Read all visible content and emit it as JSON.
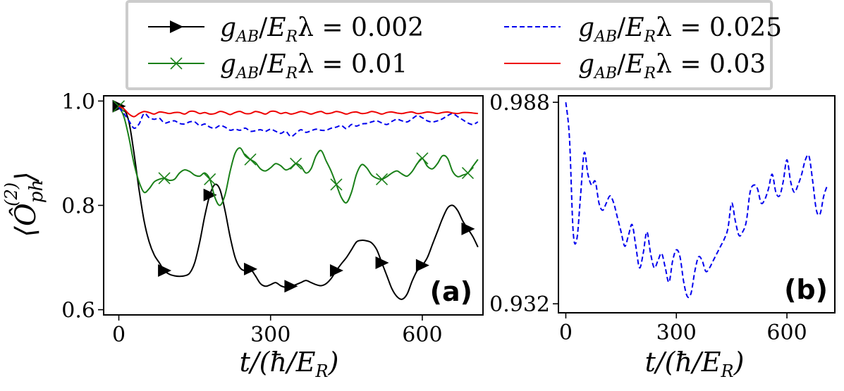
{
  "legend": {
    "placement": "top-center",
    "entries": [
      {
        "label": "g_AB/E_R λ = 0.002",
        "latex_var": "g",
        "sub": "AB",
        "denom": "E",
        "denom_sub": "R",
        "tail": "λ = 0.002",
        "color": "#000000",
        "marker": "triangle-right",
        "dash": "solid"
      },
      {
        "label": "g_AB/E_R λ = 0.01",
        "latex_var": "g",
        "sub": "AB",
        "denom": "E",
        "denom_sub": "R",
        "tail": "λ = 0.01",
        "color": "#1a8019",
        "marker": "x",
        "dash": "solid"
      },
      {
        "label": "g_AB/E_R λ = 0.025",
        "latex_var": "g",
        "sub": "AB",
        "denom": "E",
        "denom_sub": "R",
        "tail": "λ = 0.025",
        "color": "#0000ee",
        "marker": "none",
        "dash": "dashed"
      },
      {
        "label": "g_AB/E_R λ = 0.03",
        "latex_var": "g",
        "sub": "AB",
        "denom": "E",
        "denom_sub": "R",
        "tail": "λ = 0.03",
        "color": "#ee0000",
        "marker": "none",
        "dash": "solid"
      }
    ]
  },
  "chart_data": [
    {
      "panel": "a",
      "panel_label": "(a)",
      "type": "line",
      "xlabel": "t/(ħ/E_R)",
      "xlabel_parts": {
        "t": "t/(ħ/",
        "E": "E",
        "sub": "R",
        "close": ")"
      },
      "ylabel": "⟨Ô_ph^(2)⟩",
      "ylabel_parts": {
        "open": "⟨",
        "O": "Ô",
        "sub": "ph",
        "sup": "(2)",
        "close": "⟩"
      },
      "xlim": [
        -30,
        720
      ],
      "ylim": [
        0.59,
        1.01
      ],
      "xticks": [
        0,
        300,
        600
      ],
      "xtick_labels": [
        "0",
        "300",
        "600"
      ],
      "yticks": [
        0.6,
        0.8,
        1.0
      ],
      "ytick_labels": [
        "0.6",
        "0.8",
        "1.0"
      ],
      "series": [
        {
          "name": "g_AB/E_R λ = 0.002",
          "color": "#000000",
          "marker": "triangle-right",
          "dash": "solid",
          "x": [
            0,
            10,
            20,
            30,
            40,
            50,
            60,
            70,
            80,
            90,
            100,
            110,
            120,
            130,
            140,
            150,
            160,
            170,
            180,
            190,
            200,
            210,
            220,
            230,
            240,
            250,
            260,
            270,
            280,
            290,
            300,
            310,
            320,
            330,
            340,
            350,
            360,
            370,
            380,
            390,
            400,
            410,
            420,
            430,
            440,
            450,
            460,
            470,
            480,
            490,
            500,
            510,
            520,
            530,
            540,
            550,
            560,
            570,
            580,
            590,
            600,
            610,
            620,
            630,
            640,
            650,
            660,
            670,
            680,
            690,
            700,
            710
          ],
          "values": [
            0.99,
            0.985,
            0.96,
            0.9,
            0.83,
            0.77,
            0.73,
            0.705,
            0.69,
            0.675,
            0.668,
            0.665,
            0.664,
            0.665,
            0.67,
            0.69,
            0.73,
            0.78,
            0.82,
            0.84,
            0.83,
            0.79,
            0.74,
            0.7,
            0.68,
            0.675,
            0.678,
            0.665,
            0.65,
            0.645,
            0.648,
            0.652,
            0.646,
            0.643,
            0.645,
            0.648,
            0.652,
            0.656,
            0.652,
            0.648,
            0.646,
            0.65,
            0.66,
            0.675,
            0.688,
            0.7,
            0.715,
            0.73,
            0.733,
            0.732,
            0.728,
            0.715,
            0.69,
            0.665,
            0.64,
            0.625,
            0.62,
            0.63,
            0.655,
            0.675,
            0.685,
            0.7,
            0.725,
            0.75,
            0.775,
            0.795,
            0.8,
            0.79,
            0.77,
            0.755,
            0.74,
            0.72
          ],
          "marker_x": [
            0,
            90,
            180,
            260,
            340,
            430,
            520,
            600,
            690
          ]
        },
        {
          "name": "g_AB/E_R λ = 0.01",
          "color": "#1a8019",
          "marker": "x",
          "dash": "solid",
          "x": [
            0,
            10,
            20,
            30,
            40,
            50,
            60,
            70,
            80,
            90,
            100,
            110,
            120,
            130,
            140,
            150,
            160,
            170,
            180,
            190,
            200,
            210,
            220,
            230,
            240,
            250,
            260,
            270,
            280,
            290,
            300,
            310,
            320,
            330,
            340,
            350,
            360,
            370,
            380,
            390,
            400,
            410,
            420,
            430,
            440,
            450,
            460,
            470,
            480,
            490,
            500,
            510,
            520,
            530,
            540,
            550,
            560,
            570,
            580,
            590,
            600,
            610,
            620,
            630,
            640,
            650,
            660,
            670,
            680,
            690,
            700,
            710
          ],
          "values": [
            0.99,
            0.97,
            0.93,
            0.88,
            0.845,
            0.825,
            0.832,
            0.845,
            0.85,
            0.852,
            0.848,
            0.85,
            0.862,
            0.868,
            0.865,
            0.858,
            0.856,
            0.862,
            0.85,
            0.815,
            0.8,
            0.82,
            0.865,
            0.9,
            0.91,
            0.895,
            0.888,
            0.882,
            0.87,
            0.866,
            0.872,
            0.88,
            0.876,
            0.868,
            0.872,
            0.88,
            0.875,
            0.862,
            0.87,
            0.895,
            0.905,
            0.885,
            0.865,
            0.84,
            0.815,
            0.805,
            0.825,
            0.86,
            0.878,
            0.872,
            0.858,
            0.852,
            0.85,
            0.855,
            0.862,
            0.866,
            0.86,
            0.856,
            0.865,
            0.88,
            0.89,
            0.875,
            0.87,
            0.88,
            0.895,
            0.89,
            0.865,
            0.855,
            0.858,
            0.862,
            0.875,
            0.888
          ],
          "marker_x": [
            0,
            90,
            180,
            260,
            350,
            430,
            520,
            600,
            690
          ]
        },
        {
          "name": "g_AB/E_R λ = 0.025",
          "color": "#0000ee",
          "marker": "none",
          "dash": "dashed",
          "x": [
            0,
            10,
            20,
            30,
            40,
            50,
            60,
            70,
            80,
            90,
            100,
            110,
            120,
            130,
            140,
            150,
            160,
            170,
            180,
            190,
            200,
            210,
            220,
            230,
            240,
            250,
            260,
            270,
            280,
            290,
            300,
            310,
            320,
            330,
            340,
            350,
            360,
            370,
            380,
            390,
            400,
            410,
            420,
            430,
            440,
            450,
            460,
            470,
            480,
            490,
            500,
            510,
            520,
            530,
            540,
            550,
            560,
            570,
            580,
            590,
            600,
            610,
            620,
            630,
            640,
            650,
            660,
            670,
            680,
            690,
            700,
            710
          ],
          "values": [
            0.988,
            0.976,
            0.962,
            0.948,
            0.956,
            0.976,
            0.968,
            0.965,
            0.967,
            0.958,
            0.96,
            0.962,
            0.957,
            0.956,
            0.96,
            0.96,
            0.953,
            0.956,
            0.95,
            0.948,
            0.953,
            0.95,
            0.944,
            0.946,
            0.944,
            0.948,
            0.942,
            0.943,
            0.945,
            0.942,
            0.946,
            0.942,
            0.938,
            0.942,
            0.932,
            0.938,
            0.945,
            0.94,
            0.943,
            0.946,
            0.944,
            0.944,
            0.948,
            0.95,
            0.953,
            0.947,
            0.955,
            0.952,
            0.956,
            0.957,
            0.96,
            0.962,
            0.958,
            0.955,
            0.961,
            0.965,
            0.962,
            0.96,
            0.966,
            0.972,
            0.968,
            0.962,
            0.96,
            0.962,
            0.966,
            0.972,
            0.976,
            0.97,
            0.964,
            0.958,
            0.955,
            0.96
          ],
          "marker_x": []
        },
        {
          "name": "g_AB/E_R λ = 0.03",
          "color": "#ee0000",
          "marker": "none",
          "dash": "solid",
          "x": [
            0,
            10,
            20,
            30,
            40,
            50,
            60,
            70,
            80,
            90,
            100,
            110,
            120,
            130,
            140,
            150,
            160,
            170,
            180,
            190,
            200,
            210,
            220,
            230,
            240,
            250,
            260,
            270,
            280,
            290,
            300,
            310,
            320,
            330,
            340,
            350,
            360,
            370,
            380,
            390,
            400,
            410,
            420,
            430,
            440,
            450,
            460,
            470,
            480,
            490,
            500,
            510,
            520,
            530,
            540,
            550,
            560,
            570,
            580,
            590,
            600,
            610,
            620,
            630,
            640,
            650,
            660,
            670,
            680,
            690,
            700,
            710
          ],
          "values": [
            0.99,
            0.985,
            0.975,
            0.97,
            0.976,
            0.98,
            0.978,
            0.975,
            0.979,
            0.978,
            0.976,
            0.978,
            0.978,
            0.975,
            0.98,
            0.98,
            0.976,
            0.978,
            0.975,
            0.976,
            0.98,
            0.978,
            0.974,
            0.978,
            0.98,
            0.976,
            0.976,
            0.98,
            0.978,
            0.975,
            0.98,
            0.98,
            0.976,
            0.978,
            0.975,
            0.977,
            0.98,
            0.978,
            0.975,
            0.978,
            0.98,
            0.976,
            0.977,
            0.98,
            0.978,
            0.975,
            0.978,
            0.979,
            0.976,
            0.977,
            0.98,
            0.978,
            0.975,
            0.978,
            0.979,
            0.977,
            0.976,
            0.978,
            0.979,
            0.976,
            0.977,
            0.979,
            0.978,
            0.976,
            0.978,
            0.979,
            0.977,
            0.976,
            0.978,
            0.978,
            0.977,
            0.976
          ],
          "marker_x": []
        }
      ]
    },
    {
      "panel": "b",
      "panel_label": "(b)",
      "type": "line",
      "xlabel": "t/(ħ/E_R)",
      "xlabel_parts": {
        "t": "t/(ħ/",
        "E": "E",
        "sub": "R",
        "close": ")"
      },
      "ylabel": "",
      "xlim": [
        -20,
        730
      ],
      "ylim": [
        0.9295,
        0.9898
      ],
      "xticks": [
        0,
        300,
        600
      ],
      "xtick_labels": [
        "0",
        "300",
        "600"
      ],
      "yticks": [
        0.932,
        0.988
      ],
      "ytick_labels": [
        "0.932",
        "0.988"
      ],
      "series": [
        {
          "name": "g_AB/E_R λ = 0.025",
          "color": "#0000ee",
          "marker": "none",
          "dash": "dashed",
          "x": [
            0,
            10,
            20,
            30,
            40,
            50,
            60,
            70,
            80,
            90,
            100,
            110,
            120,
            130,
            140,
            150,
            160,
            170,
            180,
            190,
            200,
            210,
            220,
            230,
            240,
            250,
            260,
            270,
            280,
            290,
            300,
            310,
            320,
            330,
            340,
            350,
            360,
            370,
            380,
            390,
            400,
            410,
            420,
            430,
            440,
            450,
            460,
            470,
            480,
            490,
            500,
            510,
            520,
            530,
            540,
            550,
            560,
            570,
            580,
            590,
            600,
            610,
            620,
            630,
            640,
            650,
            660,
            670,
            680,
            690,
            700,
            710
          ],
          "values": [
            0.988,
            0.978,
            0.952,
            0.95,
            0.962,
            0.974,
            0.968,
            0.965,
            0.966,
            0.96,
            0.958,
            0.96,
            0.962,
            0.96,
            0.956,
            0.952,
            0.948,
            0.951,
            0.954,
            0.948,
            0.942,
            0.946,
            0.952,
            0.946,
            0.942,
            0.944,
            0.946,
            0.942,
            0.938,
            0.944,
            0.947,
            0.945,
            0.938,
            0.934,
            0.935,
            0.941,
            0.945,
            0.944,
            0.941,
            0.942,
            0.944,
            0.946,
            0.948,
            0.95,
            0.953,
            0.96,
            0.955,
            0.951,
            0.952,
            0.955,
            0.963,
            0.965,
            0.964,
            0.96,
            0.961,
            0.964,
            0.968,
            0.963,
            0.962,
            0.966,
            0.972,
            0.966,
            0.963,
            0.965,
            0.968,
            0.972,
            0.973,
            0.966,
            0.958,
            0.957,
            0.962,
            0.965
          ],
          "marker_x": []
        }
      ]
    }
  ]
}
